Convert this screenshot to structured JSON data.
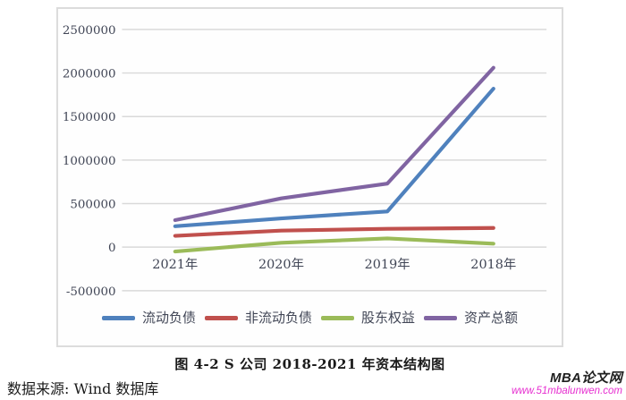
{
  "chart_data": {
    "type": "line",
    "title": "图 4-2 S 公司 2018-2021 年资本结构图",
    "categories": [
      "2021年",
      "2020年",
      "2019年",
      "2018年"
    ],
    "series": [
      {
        "name": "流动负债",
        "color": "#4f81bd",
        "values": [
          240000,
          330000,
          410000,
          1820000
        ]
      },
      {
        "name": "非流动负债",
        "color": "#c0504d",
        "values": [
          130000,
          190000,
          210000,
          220000
        ]
      },
      {
        "name": "股东权益",
        "color": "#9bbb59",
        "values": [
          -50000,
          50000,
          100000,
          40000
        ]
      },
      {
        "name": "资产总额",
        "color": "#8064a2",
        "values": [
          310000,
          560000,
          730000,
          2060000
        ]
      }
    ],
    "yticks": [
      2500000,
      2000000,
      1500000,
      1000000,
      500000,
      0,
      -500000
    ],
    "ylim": [
      -500000,
      2500000
    ],
    "xlabel": "",
    "ylabel": "",
    "grid": "horizontal",
    "legend_position": "bottom"
  },
  "caption": "图 4-2 S 公司 2018-2021 年资本结构图",
  "source": "数据来源: Wind 数据库",
  "watermark": {
    "title": "MBA论文网",
    "url": "www.51mbalunwen.com",
    "url_color": "#e62ed0"
  },
  "colors": {
    "gridline": "#d9d9d9",
    "axis_text": "#414656",
    "frame": "#dcdcdc"
  }
}
